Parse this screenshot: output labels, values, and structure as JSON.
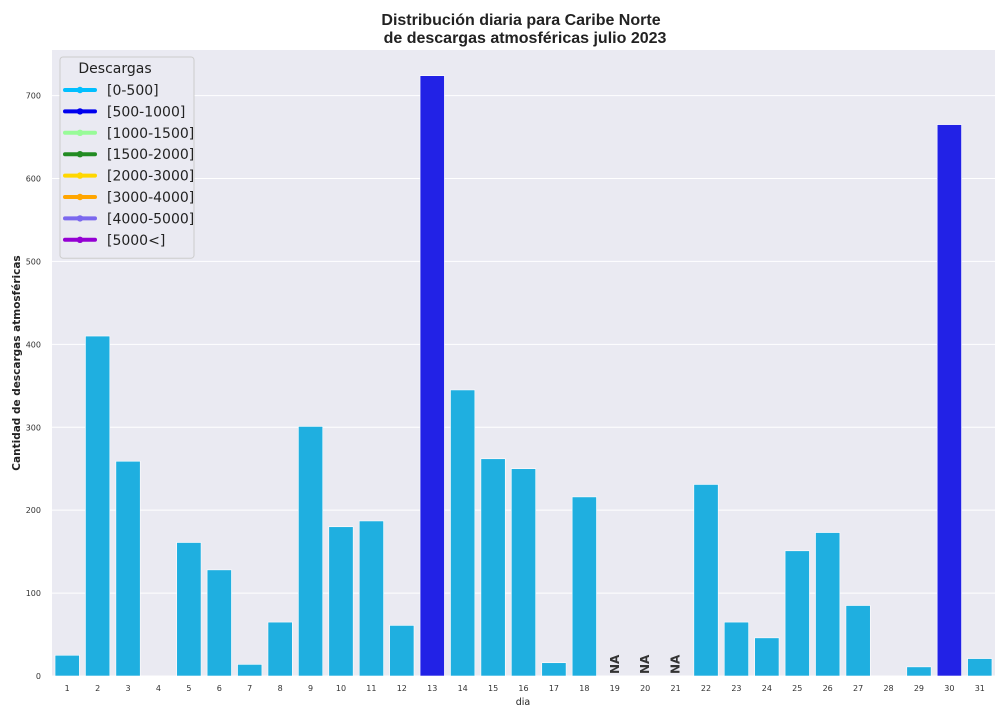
{
  "chart_data": {
    "type": "bar",
    "title_line1": "Distribución diaria para Caribe Norte",
    "title_line2": "de descargas atmosféricas julio 2023",
    "xlabel": "dia",
    "ylabel": "Cantidad de descargas atmosféricas",
    "ylim": [
      0,
      755
    ],
    "yticks": [
      0,
      100,
      200,
      300,
      400,
      500,
      600,
      700
    ],
    "grid": true,
    "legend_placement": "top-left",
    "categories": [
      "1",
      "2",
      "3",
      "4",
      "5",
      "6",
      "7",
      "8",
      "9",
      "10",
      "11",
      "12",
      "13",
      "14",
      "15",
      "16",
      "17",
      "18",
      "19",
      "20",
      "21",
      "22",
      "23",
      "24",
      "25",
      "26",
      "27",
      "28",
      "29",
      "30",
      "31"
    ],
    "values": [
      25,
      410,
      259,
      0,
      161,
      128,
      14,
      65,
      301,
      180,
      187,
      61,
      724,
      345,
      262,
      250,
      16,
      216,
      null,
      null,
      null,
      231,
      65,
      46,
      151,
      173,
      85,
      0,
      11,
      665,
      21
    ],
    "na_label": "NA",
    "legend": {
      "title": "Descargas",
      "items": [
        {
          "label": "[0-500]",
          "color": "#00bfff"
        },
        {
          "label": "[500-1000]",
          "color": "#0000ee"
        },
        {
          "label": "[1000-1500]",
          "color": "#98fb98"
        },
        {
          "label": "[1500-2000]",
          "color": "#228b22"
        },
        {
          "label": "[2000-3000]",
          "color": "#ffd700"
        },
        {
          "label": "[3000-4000]",
          "color": "#ffa500"
        },
        {
          "label": "[4000-5000]",
          "color": "#7b68ee"
        },
        {
          "label": "[5000<]",
          "color": "#9400d3"
        }
      ]
    },
    "bar_colors": {
      "low": "#1fafe0",
      "mid": "#2222e6"
    },
    "plot_background": "#eaeaf2",
    "grid_color": "#ffffff"
  }
}
